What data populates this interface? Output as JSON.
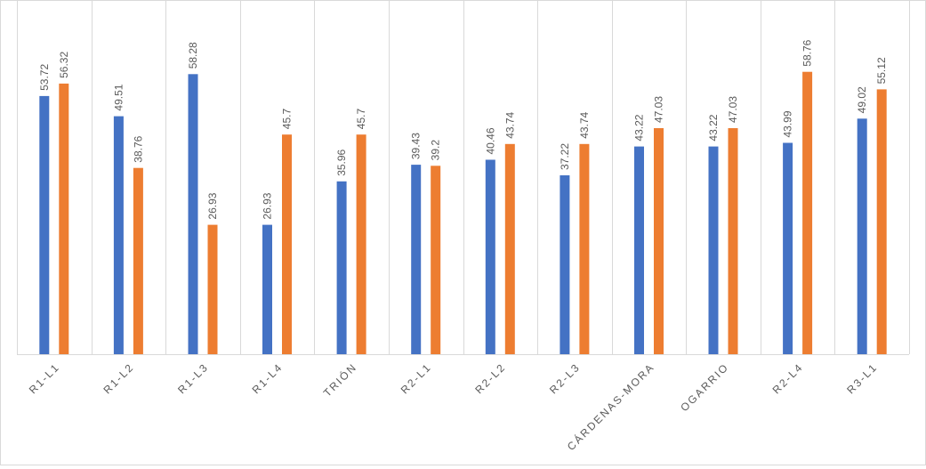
{
  "chart_data": {
    "type": "bar",
    "title": "",
    "xlabel": "",
    "ylabel": "",
    "categories": [
      "R1-L1",
      "R1-L2",
      "R1-L3",
      "R1-L4",
      "TRIÓN",
      "R2-L1",
      "R2-L2",
      "R2-L3",
      "CÁRDENAS-MORA",
      "OGARRIO",
      "R2-L4",
      "R3-L1"
    ],
    "series": [
      {
        "color": "#4472C4",
        "values": [
          53.72,
          49.51,
          58.28,
          26.93,
          35.96,
          39.43,
          40.46,
          37.22,
          43.22,
          43.22,
          43.99,
          49.02
        ]
      },
      {
        "color": "#ED7D31",
        "values": [
          56.32,
          38.76,
          26.93,
          45.7,
          45.7,
          39.2,
          43.74,
          43.74,
          47.03,
          47.03,
          58.76,
          55.12
        ]
      }
    ],
    "ylim": [
      0,
      60
    ],
    "grid": "vertical-category-separators",
    "legend": "none",
    "data_labels": true,
    "colors": {
      "separator": "#d9d9d9",
      "axis": "#d9d9d9",
      "label_text": "#595959"
    }
  }
}
